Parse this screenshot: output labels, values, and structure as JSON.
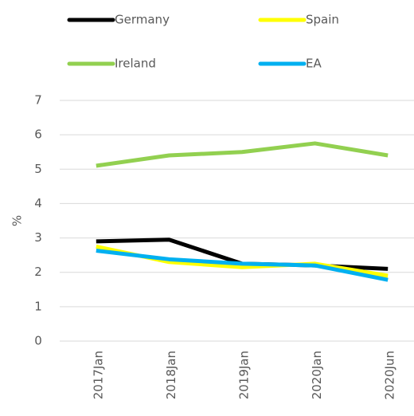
{
  "chart_data": {
    "type": "line",
    "categories": [
      "2017Jan",
      "2018Jan",
      "2019Jan",
      "2020Jan",
      "2020Jun"
    ],
    "series": [
      {
        "name": "Germany",
        "color": "#000000",
        "values": [
          2.9,
          2.95,
          2.25,
          2.2,
          2.1
        ]
      },
      {
        "name": "Spain",
        "color": "#ffff00",
        "values": [
          2.75,
          2.3,
          2.15,
          2.25,
          1.9
        ]
      },
      {
        "name": "Ireland",
        "color": "#92d050",
        "values": [
          5.1,
          5.4,
          5.5,
          5.75,
          5.4
        ]
      },
      {
        "name": "EA",
        "color": "#00b0f0",
        "values": [
          2.63,
          2.38,
          2.25,
          2.2,
          1.78
        ]
      }
    ],
    "ylabel": "%",
    "ylim": [
      0,
      7
    ],
    "yticks": [
      0,
      1,
      2,
      3,
      4,
      5,
      6,
      7
    ],
    "grid": true,
    "legend": "top"
  }
}
